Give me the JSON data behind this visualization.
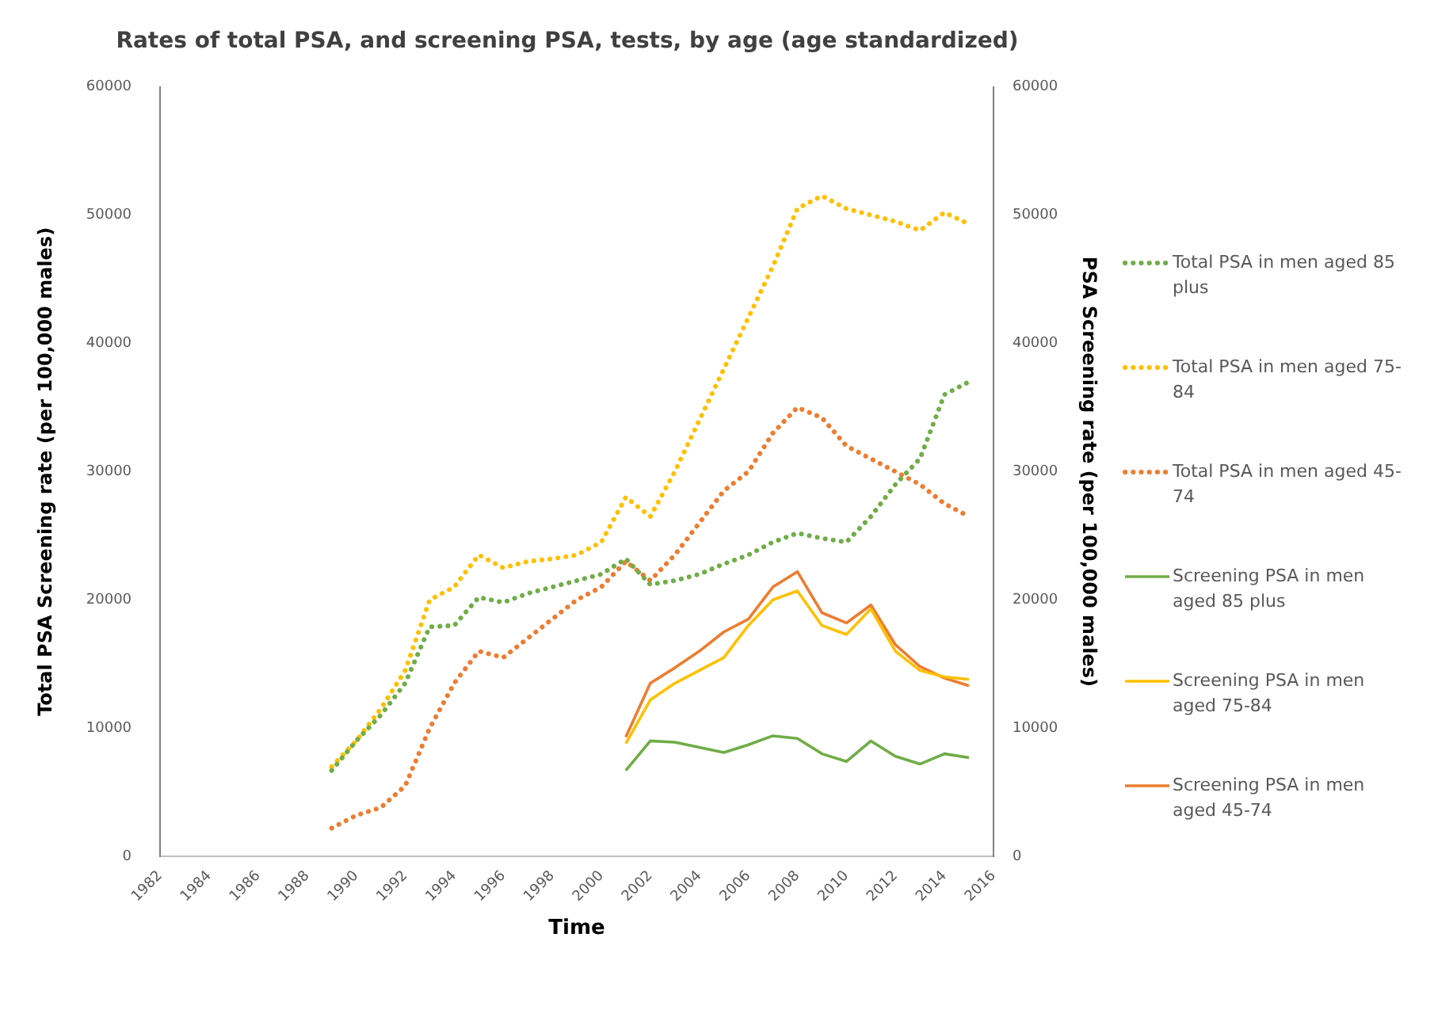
{
  "chart_data": {
    "type": "line",
    "title": "Rates of total PSA, and screening PSA, tests, by age (age standardized)",
    "xlabel": "Time",
    "ylabel": "Total PSA Screening rate (per 100,000 males)",
    "y2label": "PSA Screening rate (per 100,000 males)",
    "x": [
      1989,
      1990,
      1991,
      1992,
      1993,
      1994,
      1995,
      1996,
      1997,
      1998,
      1999,
      2000,
      2001,
      2002,
      2003,
      2004,
      2005,
      2006,
      2007,
      2008,
      2009,
      2010,
      2011,
      2012,
      2013,
      2014,
      2015
    ],
    "xlim": [
      1982,
      2016
    ],
    "xticks": [
      1982,
      1984,
      1986,
      1988,
      1990,
      1992,
      1994,
      1996,
      1998,
      2000,
      2002,
      2004,
      2006,
      2008,
      2010,
      2012,
      2014,
      2016
    ],
    "ylim": [
      0,
      60000
    ],
    "yticks": [
      0,
      10000,
      20000,
      30000,
      40000,
      50000,
      60000
    ],
    "y2lim": [
      0,
      60000
    ],
    "y2ticks": [
      0,
      10000,
      20000,
      30000,
      40000,
      50000,
      60000
    ],
    "grid": false,
    "legend": "right",
    "marker": "none",
    "series": [
      {
        "name": "Total PSA in men aged 85 plus",
        "color": "#70ad47",
        "line_style": "dotted",
        "values": [
          6700,
          9000,
          11000,
          13500,
          17900,
          18000,
          20200,
          19800,
          20500,
          21000,
          21500,
          22000,
          23200,
          21200,
          21500,
          22000,
          22800,
          23500,
          24500,
          25200,
          24800,
          24500,
          26500,
          29000,
          31000,
          36000,
          37000
        ]
      },
      {
        "name": "Total PSA in men aged 75-84",
        "color": "#ffc000",
        "line_style": "dotted",
        "values": [
          7000,
          9000,
          11500,
          14500,
          20000,
          21000,
          23500,
          22500,
          23000,
          23200,
          23500,
          24500,
          28000,
          26500,
          30000,
          34000,
          38000,
          42000,
          46000,
          50500,
          51500,
          50500,
          50000,
          49500,
          48800,
          50200,
          49300
        ]
      },
      {
        "name": "Total PSA in men aged 45-74",
        "color": "#ed7d31",
        "line_style": "dotted",
        "values": [
          2200,
          3200,
          3800,
          5500,
          10000,
          13500,
          16000,
          15500,
          17000,
          18500,
          20000,
          21000,
          23000,
          21500,
          23500,
          26000,
          28500,
          30000,
          33000,
          35000,
          34200,
          32000,
          31000,
          30000,
          29000,
          27500,
          26500
        ]
      },
      {
        "name": "Screening PSA in men aged 85 plus",
        "color": "#70ad47",
        "line_style": "solid",
        "axis": "y2",
        "x": [
          2001,
          2002,
          2003,
          2004,
          2005,
          2006,
          2007,
          2008,
          2009,
          2010,
          2011,
          2012,
          2013,
          2014,
          2015
        ],
        "values": [
          6700,
          9000,
          8900,
          8500,
          8100,
          8700,
          9400,
          9200,
          8000,
          7400,
          9000,
          7800,
          7200,
          8000,
          7700
        ]
      },
      {
        "name": "Screening PSA in men aged 75-84",
        "color": "#ffc000",
        "line_style": "solid",
        "axis": "y2",
        "x": [
          2001,
          2002,
          2003,
          2004,
          2005,
          2006,
          2007,
          2008,
          2009,
          2010,
          2011,
          2012,
          2013,
          2014,
          2015
        ],
        "values": [
          8800,
          12200,
          13500,
          14500,
          15500,
          18000,
          20000,
          20700,
          18000,
          17300,
          19300,
          16000,
          14500,
          14000,
          13800
        ]
      },
      {
        "name": "Screening PSA in men aged 45-74",
        "color": "#ed7d31",
        "line_style": "solid",
        "axis": "y2",
        "x": [
          2001,
          2002,
          2003,
          2004,
          2005,
          2006,
          2007,
          2008,
          2009,
          2010,
          2011,
          2012,
          2013,
          2014,
          2015
        ],
        "values": [
          9300,
          13500,
          14700,
          16000,
          17500,
          18500,
          21000,
          22200,
          19000,
          18200,
          19600,
          16500,
          14800,
          13900,
          13300
        ]
      }
    ]
  }
}
